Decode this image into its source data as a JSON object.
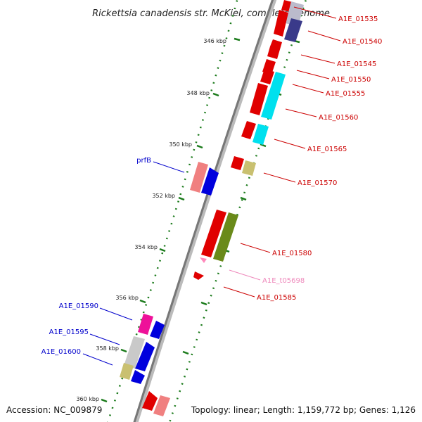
{
  "title": "Rickettsia canadensis str. McKiel, complete genome",
  "accession": "Accession: NC_009879",
  "topology": "Topology: linear; Length: 1,159,772 bp; Genes: 1,126",
  "colors": {
    "backbone": "#888888",
    "tick": "#1a7a1a",
    "label_red": "#cc0000",
    "label_blue": "#0000cc",
    "label_pink": "#ee88bb"
  },
  "kbp_ticks": [
    "346 kbp",
    "348 kbp",
    "350 kbp",
    "352 kbp",
    "354 kbp",
    "356 kbp",
    "358 kbp",
    "360 kbp"
  ],
  "gene_labels": [
    "A1E_01535",
    "A1E_01540",
    "A1E_01545",
    "A1E_01550",
    "A1E_01555",
    "A1E_01560",
    "A1E_01565",
    "A1E_01570",
    "A1E_01580",
    "A1E_t05698",
    "A1E_01585",
    "prfB",
    "A1E_01590",
    "A1E_01595",
    "A1E_01600"
  ]
}
